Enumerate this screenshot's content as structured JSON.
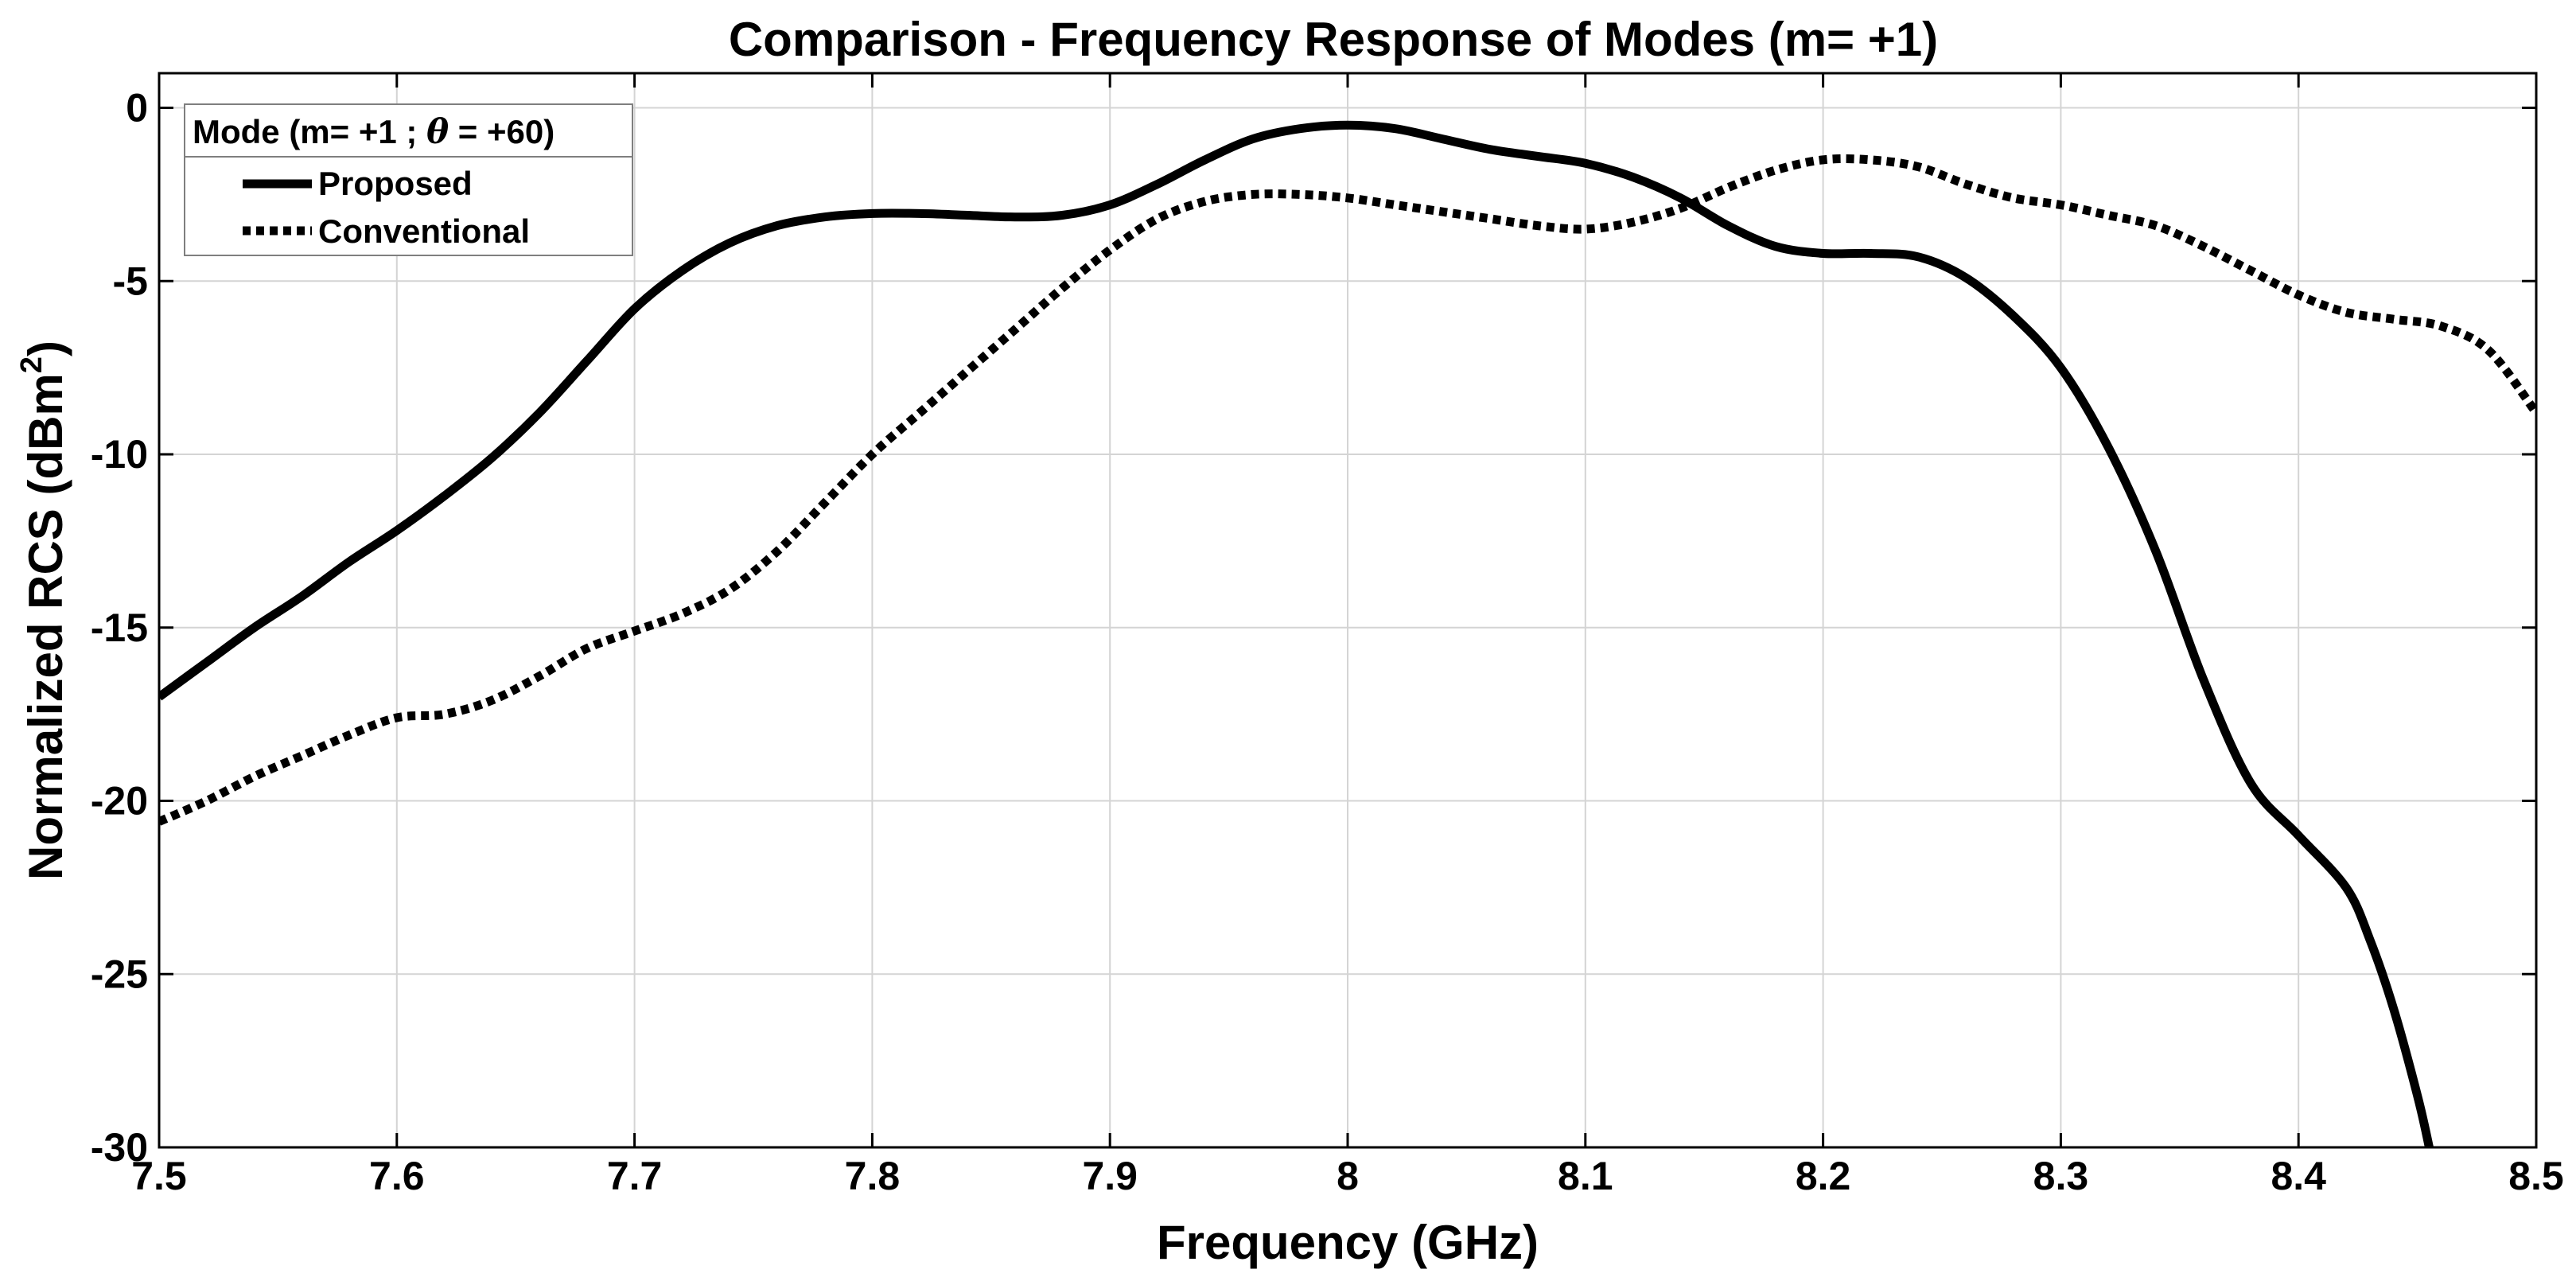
{
  "chart_data": {
    "type": "line",
    "title": "Comparison - Frequency Response of Modes (m= +1)",
    "xlabel": "Frequency (GHz)",
    "ylabel": "Normalized RCS (dBm",
    "ylabel_superscript": "2",
    "ylabel_close": ")",
    "xlim": [
      7.5,
      8.5
    ],
    "ylim": [
      -30,
      1
    ],
    "xticks": [
      7.5,
      7.6,
      7.7,
      7.8,
      7.9,
      8,
      8.1,
      8.2,
      8.3,
      8.4,
      8.5
    ],
    "xtick_labels": [
      "7.5",
      "7.6",
      "7.7",
      "7.8",
      "7.9",
      "8",
      "8.1",
      "8.2",
      "8.3",
      "8.4",
      "8.5"
    ],
    "yticks": [
      0,
      -5,
      -10,
      -15,
      -20,
      -25,
      -30
    ],
    "ytick_labels": [
      "0",
      "-5",
      "-10",
      "-15",
      "-20",
      "-25",
      "-30"
    ],
    "grid": true,
    "legend": {
      "placement": "top-left",
      "title_prefix": "Mode (m= +1 ; ",
      "title_symbol": "θ",
      "title_suffix": " = +60)",
      "entries": [
        "Proposed",
        "Conventional"
      ]
    },
    "series": [
      {
        "name": "Proposed",
        "style": "solid",
        "color": "#000000",
        "x": [
          7.5,
          7.52,
          7.54,
          7.56,
          7.58,
          7.6,
          7.62,
          7.64,
          7.66,
          7.68,
          7.7,
          7.72,
          7.74,
          7.76,
          7.78,
          7.8,
          7.82,
          7.84,
          7.86,
          7.88,
          7.9,
          7.92,
          7.94,
          7.96,
          7.98,
          8.0,
          8.02,
          8.04,
          8.06,
          8.08,
          8.1,
          8.12,
          8.14,
          8.16,
          8.18,
          8.2,
          8.22,
          8.24,
          8.26,
          8.28,
          8.3,
          8.32,
          8.34,
          8.36,
          8.38,
          8.4,
          8.42,
          8.43,
          8.44,
          8.45,
          8.455
        ],
        "y": [
          -17.0,
          -16.0,
          -15.0,
          -14.1,
          -13.1,
          -12.2,
          -11.2,
          -10.1,
          -8.8,
          -7.3,
          -5.8,
          -4.7,
          -3.9,
          -3.4,
          -3.15,
          -3.05,
          -3.05,
          -3.1,
          -3.15,
          -3.1,
          -2.8,
          -2.2,
          -1.5,
          -0.9,
          -0.6,
          -0.5,
          -0.6,
          -0.9,
          -1.2,
          -1.4,
          -1.6,
          -2.0,
          -2.6,
          -3.4,
          -4.0,
          -4.2,
          -4.2,
          -4.3,
          -4.9,
          -6.0,
          -7.5,
          -9.8,
          -12.8,
          -16.5,
          -19.5,
          -21.0,
          -22.5,
          -24.0,
          -26.0,
          -28.5,
          -30.0
        ]
      },
      {
        "name": "Conventional",
        "style": "dotted",
        "color": "#000000",
        "x": [
          7.5,
          7.52,
          7.54,
          7.56,
          7.58,
          7.6,
          7.62,
          7.64,
          7.66,
          7.68,
          7.7,
          7.72,
          7.74,
          7.76,
          7.78,
          7.8,
          7.82,
          7.84,
          7.86,
          7.88,
          7.9,
          7.92,
          7.94,
          7.96,
          7.98,
          8.0,
          8.02,
          8.04,
          8.06,
          8.08,
          8.1,
          8.12,
          8.14,
          8.16,
          8.18,
          8.2,
          8.22,
          8.24,
          8.26,
          8.28,
          8.3,
          8.32,
          8.34,
          8.36,
          8.38,
          8.4,
          8.42,
          8.44,
          8.46,
          8.48,
          8.5
        ],
        "y": [
          -20.6,
          -20.0,
          -19.3,
          -18.7,
          -18.1,
          -17.6,
          -17.5,
          -17.1,
          -16.4,
          -15.6,
          -15.1,
          -14.6,
          -13.9,
          -12.8,
          -11.4,
          -10.0,
          -8.8,
          -7.6,
          -6.4,
          -5.2,
          -4.1,
          -3.2,
          -2.7,
          -2.5,
          -2.5,
          -2.6,
          -2.8,
          -3.0,
          -3.2,
          -3.4,
          -3.5,
          -3.3,
          -2.9,
          -2.3,
          -1.8,
          -1.5,
          -1.5,
          -1.7,
          -2.2,
          -2.6,
          -2.8,
          -3.1,
          -3.4,
          -4.0,
          -4.7,
          -5.4,
          -5.9,
          -6.1,
          -6.3,
          -7.0,
          -8.8
        ]
      }
    ]
  }
}
